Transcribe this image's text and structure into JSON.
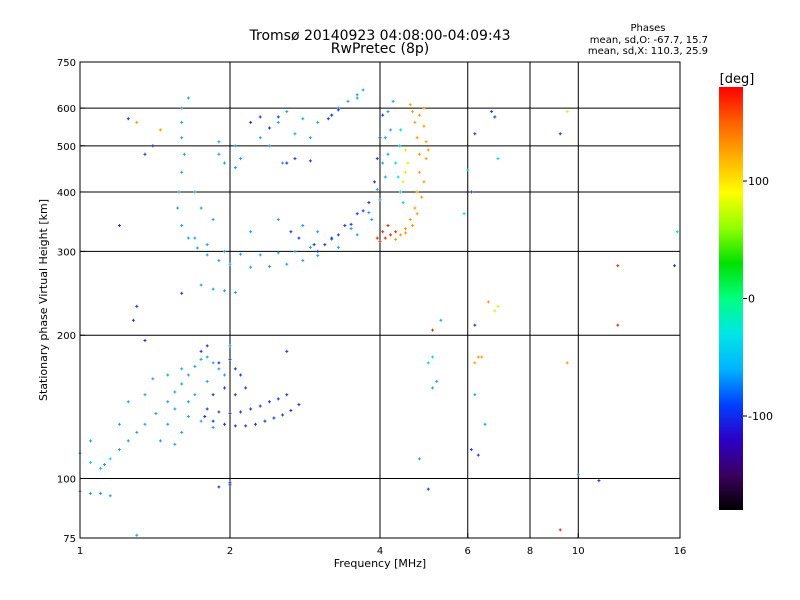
{
  "chart_data": {
    "type": "scatter",
    "title": "Tromsø 20140923 04:08:00-04:09:43",
    "subtitle": "RwPretec (8p)",
    "xlabel": "Frequency [MHz]",
    "ylabel": "Stationary phase Virtual Height [km]",
    "x_scale": "log",
    "y_scale": "log",
    "xlim": [
      1,
      16
    ],
    "ylim": [
      75,
      750
    ],
    "x_ticks": [
      1,
      2,
      4,
      6,
      8,
      10,
      16
    ],
    "y_ticks": [
      75,
      100,
      200,
      300,
      400,
      500,
      600,
      750
    ],
    "grid": true,
    "stats": {
      "heading": "Phases",
      "line_o": "mean, sd,O: -67.7, 15.7",
      "line_x": "mean, sd,X: 110.3, 25.9"
    },
    "colorbar": {
      "unit": "[deg]",
      "range": [
        -180,
        180
      ],
      "ticks": [
        100,
        0,
        -100
      ],
      "colors": [
        "#000000",
        "#3b0060",
        "#2c00c8",
        "#0040ff",
        "#00b4ff",
        "#00e6e6",
        "#00ff80",
        "#00e000",
        "#90ff00",
        "#ffff00",
        "#ffb000",
        "#ff6000",
        "#ff0000"
      ]
    },
    "series": [
      {
        "color": "#1ea0f0",
        "points": [
          [
            1.65,
            630
          ],
          [
            1.6,
            600
          ],
          [
            1.6,
            560
          ],
          [
            1.6,
            520
          ],
          [
            1.62,
            480
          ],
          [
            1.6,
            440
          ],
          [
            1.58,
            400
          ],
          [
            1.57,
            370
          ],
          [
            1.6,
            340
          ],
          [
            1.65,
            320
          ],
          [
            1.72,
            305
          ],
          [
            1.8,
            295
          ],
          [
            1.9,
            287
          ],
          [
            2.0,
            282
          ],
          [
            2.2,
            278
          ],
          [
            2.4,
            279
          ],
          [
            2.6,
            282
          ],
          [
            2.8,
            287
          ],
          [
            3.0,
            294
          ],
          [
            3.3,
            306
          ],
          [
            3.6,
            325
          ],
          [
            3.85,
            350
          ],
          [
            4.0,
            385
          ],
          [
            4.1,
            430
          ],
          [
            4.15,
            480
          ],
          [
            4.2,
            540
          ],
          [
            4.25,
            620
          ],
          [
            1.7,
            320
          ],
          [
            1.8,
            310
          ],
          [
            1.95,
            300
          ],
          [
            2.1,
            296
          ],
          [
            2.3,
            295
          ],
          [
            2.5,
            298
          ],
          [
            2.7,
            300
          ],
          [
            2.9,
            306
          ],
          [
            3.2,
            318
          ],
          [
            3.5,
            335
          ],
          [
            3.8,
            362
          ],
          [
            3.95,
            405
          ],
          [
            4.05,
            460
          ],
          [
            4.1,
            520
          ],
          [
            4.15,
            590
          ],
          [
            1.9,
            480
          ],
          [
            1.95,
            460
          ],
          [
            2.05,
            450
          ],
          [
            2.1,
            470
          ],
          [
            2.05,
            500
          ],
          [
            1.9,
            510
          ],
          [
            2.3,
            520
          ],
          [
            2.4,
            500
          ],
          [
            2.5,
            560
          ],
          [
            2.6,
            590
          ],
          [
            2.55,
            460
          ],
          [
            2.7,
            530
          ],
          [
            2.8,
            570
          ],
          [
            2.9,
            520
          ],
          [
            3.0,
            560
          ],
          [
            3.2,
            580
          ],
          [
            3.3,
            600
          ],
          [
            3.45,
            620
          ],
          [
            3.6,
            640
          ],
          [
            3.7,
            655
          ],
          [
            3.6,
            630
          ],
          [
            1.75,
            255
          ],
          [
            1.85,
            250
          ],
          [
            1.95,
            248
          ],
          [
            2.05,
            246
          ],
          [
            1.7,
            400
          ],
          [
            1.75,
            370
          ],
          [
            1.85,
            350
          ],
          [
            2.2,
            330
          ],
          [
            2.5,
            350
          ],
          [
            2.8,
            340
          ],
          [
            3.0,
            330
          ],
          [
            1.0,
            113
          ],
          [
            1.05,
            120
          ],
          [
            1.12,
            107
          ],
          [
            1.2,
            115
          ],
          [
            1.25,
            120
          ],
          [
            1.3,
            125
          ],
          [
            1.35,
            130
          ],
          [
            1.42,
            137
          ],
          [
            1.5,
            145
          ],
          [
            1.55,
            152
          ],
          [
            1.6,
            158
          ],
          [
            1.65,
            165
          ],
          [
            1.7,
            172
          ],
          [
            1.75,
            178
          ],
          [
            1.8,
            180
          ],
          [
            1.85,
            175
          ],
          [
            1.9,
            170
          ],
          [
            1.95,
            165
          ],
          [
            1.45,
            120
          ],
          [
            1.55,
            118
          ],
          [
            1.6,
            125
          ],
          [
            1.65,
            135
          ],
          [
            1.5,
            130
          ],
          [
            1.0,
            94
          ],
          [
            1.05,
            93
          ],
          [
            1.1,
            93
          ],
          [
            1.15,
            92
          ],
          [
            1.2,
            130
          ],
          [
            1.25,
            145
          ],
          [
            1.35,
            150
          ],
          [
            1.4,
            162
          ],
          [
            1.5,
            165
          ],
          [
            1.6,
            170
          ],
          [
            1.7,
            150
          ],
          [
            1.8,
            160
          ],
          [
            2.0,
            190
          ],
          [
            5.2,
            160
          ],
          [
            5.1,
            155
          ],
          [
            6.2,
            150
          ],
          [
            6.5,
            130
          ],
          [
            10.0,
            102
          ],
          [
            4.8,
            110
          ],
          [
            5.3,
            215
          ],
          [
            1.3,
            76
          ],
          [
            1.55,
            140
          ],
          [
            1.65,
            145
          ],
          [
            1.75,
            132
          ],
          [
            1.85,
            128
          ]
        ]
      },
      {
        "color": "#1838d8",
        "points": [
          [
            1.78,
            135
          ],
          [
            1.85,
            132
          ],
          [
            1.95,
            130
          ],
          [
            2.05,
            129
          ],
          [
            2.15,
            129
          ],
          [
            2.25,
            130
          ],
          [
            2.35,
            132
          ],
          [
            2.45,
            134
          ],
          [
            2.55,
            136
          ],
          [
            2.65,
            139
          ],
          [
            2.75,
            143
          ],
          [
            1.8,
            140
          ],
          [
            1.9,
            138
          ],
          [
            2.0,
            137
          ],
          [
            2.1,
            138
          ],
          [
            2.2,
            140
          ],
          [
            2.3,
            142
          ],
          [
            2.4,
            145
          ],
          [
            2.5,
            147
          ],
          [
            2.6,
            150
          ],
          [
            1.85,
            150
          ],
          [
            1.95,
            155
          ],
          [
            2.05,
            150
          ],
          [
            2.15,
            155
          ],
          [
            1.9,
            175
          ],
          [
            2.0,
            178
          ],
          [
            2.05,
            170
          ],
          [
            2.1,
            165
          ],
          [
            3.2,
            320
          ],
          [
            3.4,
            340
          ],
          [
            3.6,
            360
          ],
          [
            3.8,
            380
          ],
          [
            3.9,
            420
          ],
          [
            3.95,
            470
          ],
          [
            4.0,
            520
          ],
          [
            4.05,
            580
          ],
          [
            3.0,
            300
          ],
          [
            3.1,
            310
          ],
          [
            3.3,
            325
          ],
          [
            3.5,
            342
          ],
          [
            3.7,
            365
          ],
          [
            3.2,
            580
          ],
          [
            3.3,
            595
          ],
          [
            3.15,
            570
          ],
          [
            2.6,
            460
          ],
          [
            2.7,
            470
          ],
          [
            2.9,
            465
          ],
          [
            2.2,
            560
          ],
          [
            2.3,
            575
          ],
          [
            2.4,
            545
          ],
          [
            2.5,
            575
          ],
          [
            2.65,
            330
          ],
          [
            2.75,
            320
          ],
          [
            2.95,
            310
          ],
          [
            1.9,
            96
          ],
          [
            2.0,
            97
          ],
          [
            2.0,
            98
          ],
          [
            1.2,
            340
          ],
          [
            1.35,
            480
          ],
          [
            1.4,
            500
          ],
          [
            5.0,
            95
          ],
          [
            6.2,
            210
          ],
          [
            6.8,
            575
          ],
          [
            9.2,
            530
          ],
          [
            6.1,
            400
          ],
          [
            15.6,
            280
          ],
          [
            1.25,
            570
          ],
          [
            1.3,
            230
          ],
          [
            1.6,
            245
          ],
          [
            1.35,
            195
          ],
          [
            1.28,
            215
          ],
          [
            2.6,
            185
          ],
          [
            1.75,
            185
          ],
          [
            1.8,
            190
          ],
          [
            6.1,
            115
          ],
          [
            6.3,
            112
          ],
          [
            11.0,
            99
          ],
          [
            6.2,
            530
          ],
          [
            6.7,
            590
          ]
        ]
      },
      {
        "color": "#00dcdc",
        "points": [
          [
            4.3,
            460
          ],
          [
            4.35,
            430
          ],
          [
            4.4,
            400
          ],
          [
            4.45,
            380
          ],
          [
            4.38,
            500
          ],
          [
            4.4,
            540
          ],
          [
            5.0,
            175
          ],
          [
            5.1,
            180
          ],
          [
            6.0,
            445
          ],
          [
            6.9,
            470
          ],
          [
            1.05,
            108
          ],
          [
            1.1,
            105
          ],
          [
            1.15,
            110
          ],
          [
            5.9,
            360
          ],
          [
            15.8,
            330
          ]
        ]
      },
      {
        "color": "#c8ff00",
        "points": [
          [
            4.45,
            420
          ],
          [
            4.5,
            440
          ],
          [
            4.55,
            460
          ],
          [
            4.5,
            490
          ],
          [
            6.8,
            225
          ],
          [
            6.9,
            230
          ],
          [
            9.5,
            590
          ]
        ]
      },
      {
        "color": "#ff9900",
        "points": [
          [
            4.6,
            610
          ],
          [
            4.65,
            590
          ],
          [
            4.7,
            560
          ],
          [
            4.75,
            520
          ],
          [
            4.8,
            480
          ],
          [
            4.8,
            440
          ],
          [
            4.75,
            400
          ],
          [
            4.7,
            370
          ],
          [
            4.6,
            350
          ],
          [
            4.5,
            335
          ],
          [
            4.4,
            325
          ],
          [
            4.3,
            318
          ],
          [
            4.8,
            580
          ],
          [
            4.9,
            550
          ],
          [
            4.95,
            510
          ],
          [
            4.95,
            470
          ],
          [
            4.9,
            420
          ],
          [
            4.85,
            390
          ],
          [
            4.75,
            360
          ],
          [
            4.65,
            340
          ],
          [
            4.5,
            328
          ],
          [
            5.0,
            490
          ],
          [
            4.9,
            600
          ],
          [
            6.6,
            235
          ],
          [
            6.4,
            180
          ],
          [
            6.2,
            175
          ],
          [
            6.3,
            180
          ],
          [
            1.3,
            560
          ],
          [
            1.45,
            540
          ],
          [
            9.5,
            175
          ]
        ]
      },
      {
        "color": "#e03000",
        "points": [
          [
            4.0,
            315
          ],
          [
            4.1,
            320
          ],
          [
            4.2,
            325
          ],
          [
            4.3,
            330
          ],
          [
            3.95,
            320
          ],
          [
            4.05,
            330
          ],
          [
            4.15,
            340
          ],
          [
            12.0,
            280
          ],
          [
            12.0,
            210
          ],
          [
            9.2,
            78
          ],
          [
            5.1,
            205
          ]
        ]
      }
    ]
  }
}
